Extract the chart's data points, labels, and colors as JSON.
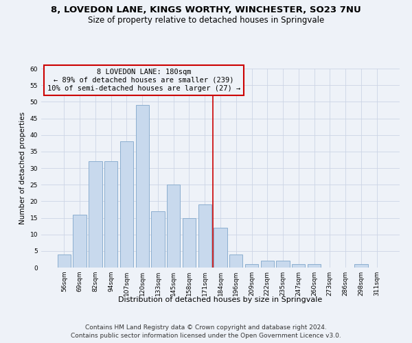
{
  "title1": "8, LOVEDON LANE, KINGS WORTHY, WINCHESTER, SO23 7NU",
  "title2": "Size of property relative to detached houses in Springvale",
  "xlabel": "Distribution of detached houses by size in Springvale",
  "ylabel": "Number of detached properties",
  "bar_values": [
    4,
    16,
    32,
    32,
    38,
    49,
    17,
    25,
    15,
    19,
    12,
    4,
    1,
    2,
    2,
    1,
    1,
    0,
    0,
    1,
    0
  ],
  "bar_labels": [
    "56sqm",
    "69sqm",
    "82sqm",
    "94sqm",
    "107sqm",
    "120sqm",
    "133sqm",
    "145sqm",
    "158sqm",
    "171sqm",
    "184sqm",
    "196sqm",
    "209sqm",
    "222sqm",
    "235sqm",
    "247sqm",
    "260sqm",
    "273sqm",
    "286sqm",
    "298sqm",
    "311sqm"
  ],
  "bar_color": "#c8d9ed",
  "bar_edge_color": "#8baecf",
  "vline_x_index": 10,
  "vline_color": "#cc0000",
  "annotation_line1": "8 LOVEDON LANE: 180sqm",
  "annotation_line2": "← 89% of detached houses are smaller (239)",
  "annotation_line3": "10% of semi-detached houses are larger (27) →",
  "annotation_box_color": "#cc0000",
  "ylim": [
    0,
    60
  ],
  "yticks": [
    0,
    5,
    10,
    15,
    20,
    25,
    30,
    35,
    40,
    45,
    50,
    55,
    60
  ],
  "grid_color": "#ccd5e5",
  "background_color": "#eef2f8",
  "footnote1": "Contains HM Land Registry data © Crown copyright and database right 2024.",
  "footnote2": "Contains public sector information licensed under the Open Government Licence v3.0.",
  "title1_fontsize": 9.5,
  "title2_fontsize": 8.5,
  "xlabel_fontsize": 8,
  "ylabel_fontsize": 7.5,
  "tick_fontsize": 6.5,
  "annotation_fontsize": 7.5,
  "footnote_fontsize": 6.5
}
